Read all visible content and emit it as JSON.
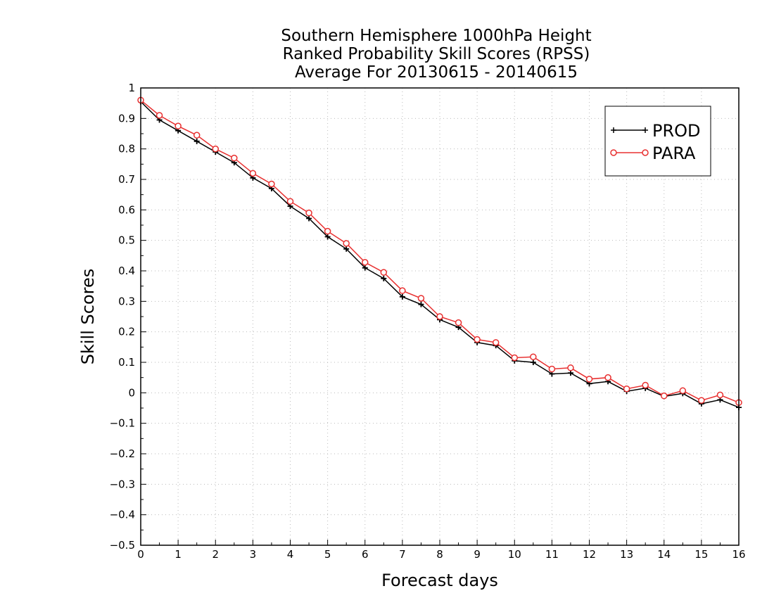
{
  "chart_data": {
    "type": "line",
    "title_lines": [
      "Southern Hemisphere 1000hPa Height",
      "Ranked Probability Skill Scores (RPSS)",
      "Average For 20130615 - 20140615"
    ],
    "xlabel": "Forecast days",
    "ylabel": "Skill Scores",
    "xlim": [
      0,
      16
    ],
    "ylim": [
      -0.5,
      1
    ],
    "xticks": [
      0,
      1,
      2,
      3,
      4,
      5,
      6,
      7,
      8,
      9,
      10,
      11,
      12,
      13,
      14,
      15,
      16
    ],
    "yticks": [
      -0.5,
      -0.4,
      -0.3,
      -0.2,
      -0.1,
      0,
      0.1,
      0.2,
      0.3,
      0.4,
      0.5,
      0.6,
      0.7,
      0.8,
      0.9,
      1
    ],
    "ytick_labels": [
      "−0.5",
      "−0.4",
      "−0.3",
      "−0.2",
      "−0.1",
      "0",
      "0.1",
      "0.2",
      "0.3",
      "0.4",
      "0.5",
      "0.6",
      "0.7",
      "0.8",
      "0.9",
      "1"
    ],
    "grid": true,
    "legend_position": "top-right",
    "x": [
      0,
      0.5,
      1,
      1.5,
      2,
      2.5,
      3,
      3.5,
      4,
      4.5,
      5,
      5.5,
      6,
      6.5,
      7,
      7.5,
      8,
      8.5,
      9,
      9.5,
      10,
      10.5,
      11,
      11.5,
      12,
      12.5,
      13,
      13.5,
      14,
      14.5,
      15,
      15.5,
      16
    ],
    "series": [
      {
        "name": "PROD",
        "color": "#000000",
        "marker": "plus",
        "values": [
          0.955,
          0.895,
          0.86,
          0.825,
          0.79,
          0.755,
          0.705,
          0.67,
          0.612,
          0.572,
          0.512,
          0.472,
          0.41,
          0.375,
          0.315,
          0.29,
          0.24,
          0.215,
          0.165,
          0.155,
          0.105,
          0.1,
          0.062,
          0.065,
          0.03,
          0.037,
          0.005,
          0.015,
          -0.012,
          -0.002,
          -0.036,
          -0.023,
          -0.048
        ]
      },
      {
        "name": "PARA",
        "color": "#e83030",
        "marker": "circle",
        "values": [
          0.96,
          0.91,
          0.875,
          0.845,
          0.8,
          0.77,
          0.72,
          0.685,
          0.628,
          0.59,
          0.53,
          0.49,
          0.428,
          0.395,
          0.335,
          0.31,
          0.25,
          0.23,
          0.175,
          0.165,
          0.115,
          0.118,
          0.078,
          0.082,
          0.045,
          0.05,
          0.013,
          0.025,
          -0.01,
          0.007,
          -0.025,
          -0.007,
          -0.032
        ]
      }
    ]
  }
}
